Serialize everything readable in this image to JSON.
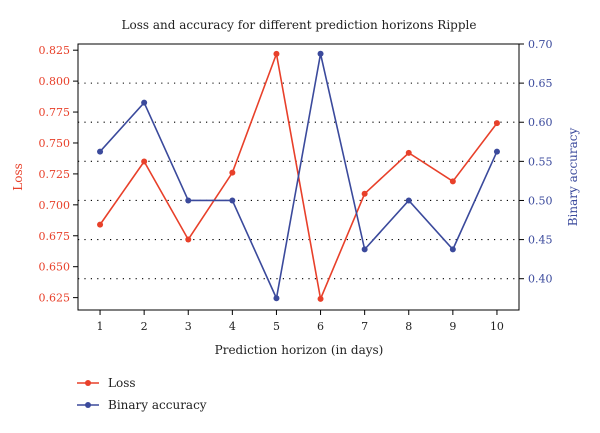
{
  "chart_data": {
    "type": "line",
    "title": "Loss and accuracy for different prediction horizons Ripple",
    "xlabel": "Prediction horizon (in days)",
    "x": [
      1,
      2,
      3,
      4,
      5,
      6,
      7,
      8,
      9,
      10
    ],
    "x_ticks": [
      "1",
      "2",
      "3",
      "4",
      "5",
      "6",
      "7",
      "8",
      "9",
      "10"
    ],
    "xlim": [
      0.5,
      10.5
    ],
    "y_left": {
      "label": "Loss",
      "range": [
        0.615,
        0.83
      ],
      "ticks": [
        0.625,
        0.65,
        0.675,
        0.7,
        0.725,
        0.75,
        0.775,
        0.8,
        0.825
      ],
      "tick_labels": [
        "0.625",
        "0.650",
        "0.675",
        "0.700",
        "0.725",
        "0.750",
        "0.775",
        "0.800",
        "0.825"
      ],
      "color": "#e8402a"
    },
    "y_right": {
      "label": "Binary accuracy",
      "range": [
        0.36,
        0.7
      ],
      "ticks": [
        0.4,
        0.45,
        0.5,
        0.55,
        0.6,
        0.65,
        0.7
      ],
      "tick_labels": [
        "0.40",
        "0.45",
        "0.50",
        "0.55",
        "0.60",
        "0.65",
        "0.70"
      ],
      "color": "#3b4a9c"
    },
    "grid": "dotted horizontal",
    "legend_position": "bottom-left",
    "series": [
      {
        "name": "Loss",
        "axis": "left",
        "color": "#e8402a",
        "values": [
          0.684,
          0.735,
          0.672,
          0.726,
          0.822,
          0.624,
          0.709,
          0.742,
          0.719,
          0.766
        ]
      },
      {
        "name": "Binary accuracy",
        "axis": "right",
        "color": "#3b4a9c",
        "values": [
          0.5625,
          0.625,
          0.5,
          0.5,
          0.375,
          0.6875,
          0.4375,
          0.5,
          0.4375,
          0.5625
        ]
      }
    ]
  }
}
